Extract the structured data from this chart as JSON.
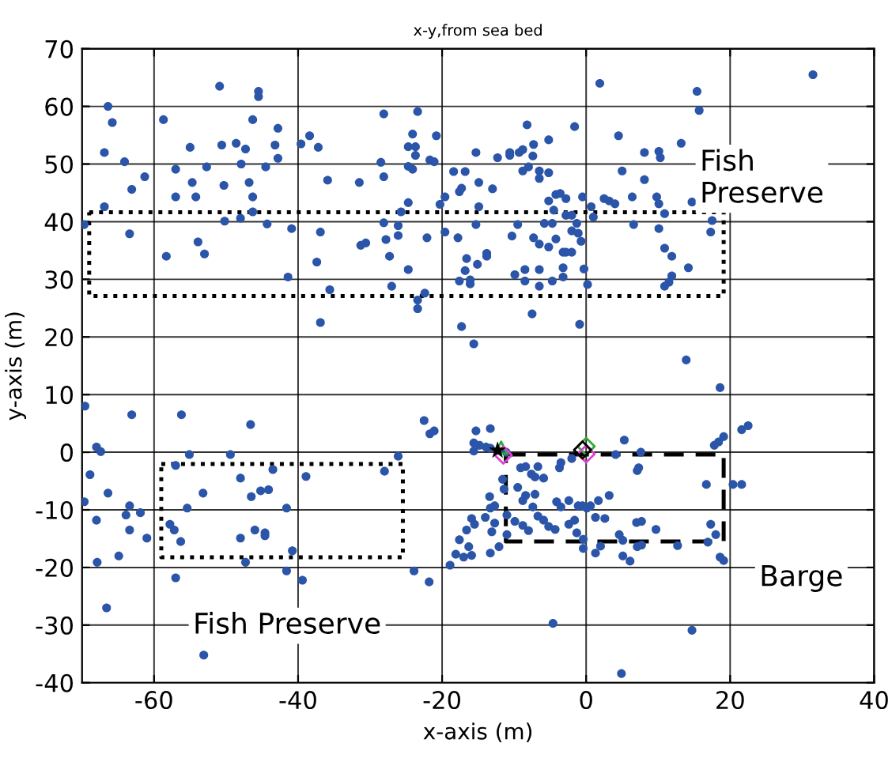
{
  "chart_data": {
    "type": "scatter",
    "title": "x-y,from sea bed",
    "xlabel": "x-axis (m)",
    "ylabel": "y-axis (m)",
    "xlim": [
      -70,
      40
    ],
    "ylim": [
      -40,
      70
    ],
    "xticks": [
      -60,
      -40,
      -20,
      0,
      20,
      40
    ],
    "yticks": [
      -40,
      -30,
      -20,
      -10,
      0,
      10,
      20,
      30,
      40,
      50,
      60,
      70
    ],
    "grid": true,
    "legend": false,
    "marker": "circle",
    "annotations": [
      "Fish\nPreserve",
      "Fish Preserve",
      "Barge"
    ],
    "series": [
      {
        "color": "#2b55a8",
        "x": [
          -69.7,
          -66.4,
          -65.8,
          -66.9,
          -64.1,
          -61.3,
          -63.1,
          -66.9,
          -63.4,
          -58.7,
          -57,
          -55,
          -54.7,
          -57,
          -54.2,
          -52.7,
          -58.3,
          -53.9,
          -53,
          -50.9,
          -50.6,
          -50.3,
          -48.6,
          -47.3,
          -47.9,
          -46.8,
          -46.3,
          -46.3,
          -46.3,
          -45.5,
          -45.5,
          -50.2,
          -48,
          -44.3,
          -44.5,
          -43.2,
          -42.8,
          -42.8,
          -40.9,
          -41.4,
          -39.6,
          -38.4,
          -37.2,
          -35.9,
          -36.9,
          -37.4,
          -35.6,
          -36.9,
          -31.5,
          -31.3,
          -30.6,
          -28.5,
          -28.1,
          -28.1,
          -28.1,
          -27.8,
          -27.3,
          -27,
          -26.1,
          -26.1,
          -25.7,
          -24.7,
          -24.7,
          -24.7,
          -24.1,
          -23.7,
          -23.7,
          -24.7,
          -24.1,
          -23.4,
          -22.1,
          -22.4,
          -23.4,
          -23.4,
          -21.7,
          -21.1,
          -20.8,
          -20.3,
          -19.6,
          -19.6,
          -18.4,
          -16.8,
          -17.8,
          -17.6,
          -17.3,
          -16.6,
          -16.8,
          -16.1,
          -16.1,
          -17.6,
          -17.3,
          -15.6,
          -15.3,
          -15.1,
          -14.9,
          -15.3,
          -14.9,
          -13,
          -13.8,
          -13.8,
          -12.3,
          -10.6,
          -10.6,
          -9.3,
          -8.8,
          -8.2,
          -7.3,
          -5.2,
          -7.4,
          -8,
          -8.8,
          -6.5,
          -5.2,
          -6.5,
          -9.5,
          -10.3,
          -9.9,
          -8.5,
          -8.5,
          -7.5,
          -6.5,
          -6.5,
          -7.3,
          -6.5,
          -5.2,
          -5.2,
          -4.2,
          -3.6,
          -2.8,
          -4.5,
          -5.8,
          -4.7,
          -4.2,
          -3.2,
          -2.8,
          -2,
          -3.2,
          -4.7,
          -3.2,
          -2.8,
          -2,
          -1.3,
          -2,
          -1.1,
          -0.7,
          -0.5,
          -1.6,
          -0.3,
          0.2,
          -0.9,
          0.7,
          1,
          1.9,
          2.5,
          3.2,
          4,
          4.5,
          5,
          6.4,
          6.6,
          8.1,
          8.1,
          10.1,
          10.3,
          9.8,
          10.1,
          10.9,
          10.1,
          10.9,
          11.9,
          11.9,
          11.5,
          10.9,
          13.2,
          14.2,
          14.7,
          15.4,
          15.7,
          17.5,
          17.3,
          31.5,
          -69.6,
          -63.1,
          -68,
          -67.4,
          -68.9,
          -66.4,
          -69.7,
          -68,
          -63.4,
          -63.9,
          -63.4,
          -61.9,
          -61,
          -67.9,
          -64.9,
          -66.6,
          -56.2,
          -55.1,
          -57,
          -53.2,
          -55.4,
          -57.8,
          -57.2,
          -56.3,
          -57,
          -49.4,
          -48,
          -46.6,
          -46.5,
          -45.2,
          -44.1,
          -43.5,
          -48,
          -47.3,
          -46,
          -44.6,
          -44.6,
          -41.6,
          -40.8,
          -41.6,
          -39.4,
          -38.9,
          -53.1,
          -28,
          -26.1,
          -23.9,
          -21.8,
          -22.5,
          -21.7,
          -21.1,
          -18.9,
          -15.3,
          -13.3,
          -15.6,
          -14.8,
          -13.9,
          -15.6,
          -13.3,
          -11.1,
          -9.1,
          -8.4,
          -7.6,
          -7.1,
          -6.7,
          -5.9,
          -3.7,
          -3.5,
          -2,
          5.3,
          4.1,
          7.6,
          7.1,
          7.3,
          -11.6,
          -11.4,
          -9.5,
          -7.1,
          -8.8,
          -8.4,
          -13.4,
          -12.7,
          -13.3,
          -11,
          -14,
          -15.9,
          -15.5,
          -16.6,
          -17.6,
          -16.3,
          -18.1,
          -17,
          -15.9,
          -12.7,
          -13.1,
          -12.1,
          -13.3,
          -11,
          -9.9,
          -8.8,
          -8,
          -7.4,
          -6.7,
          -5.9,
          -5.2,
          -4.3,
          -4.1,
          -3.5,
          -2.4,
          -2.4,
          -1.6,
          -1.1,
          -0.5,
          0.1,
          0.6,
          1.3,
          1.7,
          3.2,
          2.6,
          -1.3,
          -0.4,
          -0.4,
          1.3,
          2,
          4.6,
          5.1,
          7.1,
          7.7,
          5.1,
          6.1,
          7,
          7.7,
          9.7,
          12.7,
          16.7,
          17.3,
          18,
          16.9,
          18.6,
          19.1,
          17.8,
          18.4,
          19.1,
          18.6,
          13.9,
          20.4,
          21.6,
          21.6,
          22.5,
          -4.6,
          14.7,
          4.9
        ],
        "values": [
          39.5,
          60,
          57.2,
          52,
          50.4,
          47.8,
          45.6,
          42.6,
          37.9,
          57.7,
          49.1,
          52.9,
          46.8,
          44.3,
          44.3,
          49.5,
          34,
          36.5,
          34.4,
          63.5,
          53.3,
          46.3,
          53.6,
          52.6,
          50,
          46.8,
          44.3,
          41.7,
          57.7,
          62.6,
          61.7,
          40.1,
          40.6,
          39.6,
          49.5,
          53.3,
          56.2,
          51,
          38.8,
          30.4,
          53.5,
          54.9,
          52.9,
          47.2,
          38.2,
          33,
          28.2,
          22.5,
          46.8,
          35.9,
          36.3,
          50.3,
          47.8,
          58.7,
          39.8,
          36.9,
          34,
          28.8,
          39.3,
          37.6,
          41.7,
          43.3,
          31.7,
          53,
          55.2,
          53,
          51.5,
          49.6,
          49.1,
          59.1,
          37.2,
          27.6,
          26.4,
          24.9,
          50.7,
          50.4,
          54.9,
          43,
          44.3,
          38.2,
          48.7,
          48.7,
          37.2,
          45.2,
          45.8,
          33.6,
          31.5,
          29.9,
          29.2,
          29.7,
          21.8,
          18.8,
          52,
          32.6,
          42.6,
          39.5,
          46.8,
          45.7,
          34.5,
          34,
          51.1,
          51.5,
          52,
          52,
          52.5,
          56.8,
          53.4,
          54.2,
          51.4,
          49.5,
          48.8,
          48.8,
          48.5,
          47.5,
          39.5,
          37.5,
          30.8,
          31.7,
          29.7,
          24,
          31.7,
          28.8,
          37.2,
          36.1,
          35.6,
          43.6,
          44.7,
          44.9,
          44,
          42,
          39.7,
          39.7,
          37,
          34.7,
          34.7,
          34.7,
          32,
          29.7,
          30.4,
          41.1,
          41.1,
          39.7,
          38.4,
          38,
          36.6,
          44.3,
          56.5,
          31.8,
          29.1,
          22.2,
          42.6,
          40.8,
          64,
          44,
          43.6,
          43.1,
          54.9,
          48.8,
          44.3,
          39.5,
          52,
          47.3,
          52.2,
          51.1,
          44.3,
          43.1,
          41.4,
          38.8,
          35.4,
          34,
          30.6,
          29.5,
          28.8,
          53.6,
          32,
          43.4,
          62.6,
          59.3,
          40.2,
          38.2,
          65.5,
          8,
          6.5,
          0.9,
          0.1,
          -3.9,
          -7.1,
          -8.6,
          -11.8,
          -9.3,
          -10.9,
          -13.5,
          -10.5,
          -14.9,
          -19.1,
          -18,
          -27,
          6.5,
          -0.4,
          -2.3,
          -7.1,
          -9.7,
          -12.5,
          -13.5,
          -15.5,
          -21.8,
          -0.4,
          -4.5,
          4.8,
          -7.7,
          -6.7,
          -6.5,
          -3,
          -14.9,
          -19.1,
          -13.5,
          -14,
          -14.5,
          -9.7,
          -17.1,
          -20.6,
          -22.2,
          -4.2,
          -35.2,
          -3.3,
          -0.7,
          -20.6,
          -22.5,
          5.5,
          3.2,
          3.7,
          -19.6,
          3.7,
          4.1,
          1.6,
          1.2,
          0.9,
          0.2,
          0.7,
          0,
          -2.7,
          -2.5,
          -3.8,
          -4.3,
          -2.5,
          -4.5,
          -2.7,
          -1.8,
          -1.1,
          2.1,
          -0.4,
          0,
          -3.2,
          -2.7,
          -4.7,
          -6.4,
          -6.1,
          -7.3,
          -8.4,
          -7.5,
          -7.7,
          -9.3,
          -9.7,
          -10.9,
          -11.3,
          -11.5,
          -12.5,
          -13.5,
          -15.2,
          -16.4,
          -17.7,
          -18.2,
          -17.9,
          -12.3,
          -13.8,
          -16.4,
          -17.5,
          -14.3,
          -12,
          -12.7,
          -13.6,
          -9.5,
          -11.1,
          -11.8,
          -12.9,
          -13.4,
          -8.6,
          -9.5,
          -8.4,
          -12.5,
          -11.8,
          -9.3,
          -9.3,
          -9.7,
          -9.3,
          -11.3,
          -8.4,
          -7.5,
          -11.5,
          -14,
          -15.1,
          -16.7,
          -17.5,
          -16.3,
          -14.3,
          -15.3,
          -16.4,
          -16.1,
          -18,
          -18.9,
          -12.2,
          -12,
          -13.4,
          -16.2,
          -5.6,
          -12.5,
          -14.3,
          -15.6,
          -18.2,
          -18.8,
          1.2,
          1.8,
          2.7,
          11.2,
          16,
          -5.6,
          -5.6,
          3.9,
          4.6,
          -29.7,
          -30.9,
          -38.4
        ]
      },
      {
        "color": "#000000",
        "marker": "star",
        "x": [
          -12.3
        ],
        "values": [
          0.3
        ]
      },
      {
        "color": "#33aa33",
        "marker": "triangle",
        "x": [
          -11.8
        ],
        "values": [
          0.8
        ]
      },
      {
        "color": "#dd44cc",
        "marker": "diamond",
        "x": [
          -11.5
        ],
        "values": [
          -0.5
        ]
      },
      {
        "color": "#33aa33",
        "marker": "diamond",
        "x": [
          0
        ],
        "values": [
          1
        ]
      },
      {
        "color": "#dd44cc",
        "marker": "diamond",
        "x": [
          0
        ],
        "values": [
          -0.3
        ]
      },
      {
        "color": "#000000",
        "marker": "diamond",
        "x": [
          -0.5
        ],
        "values": [
          0.4
        ]
      }
    ]
  }
}
